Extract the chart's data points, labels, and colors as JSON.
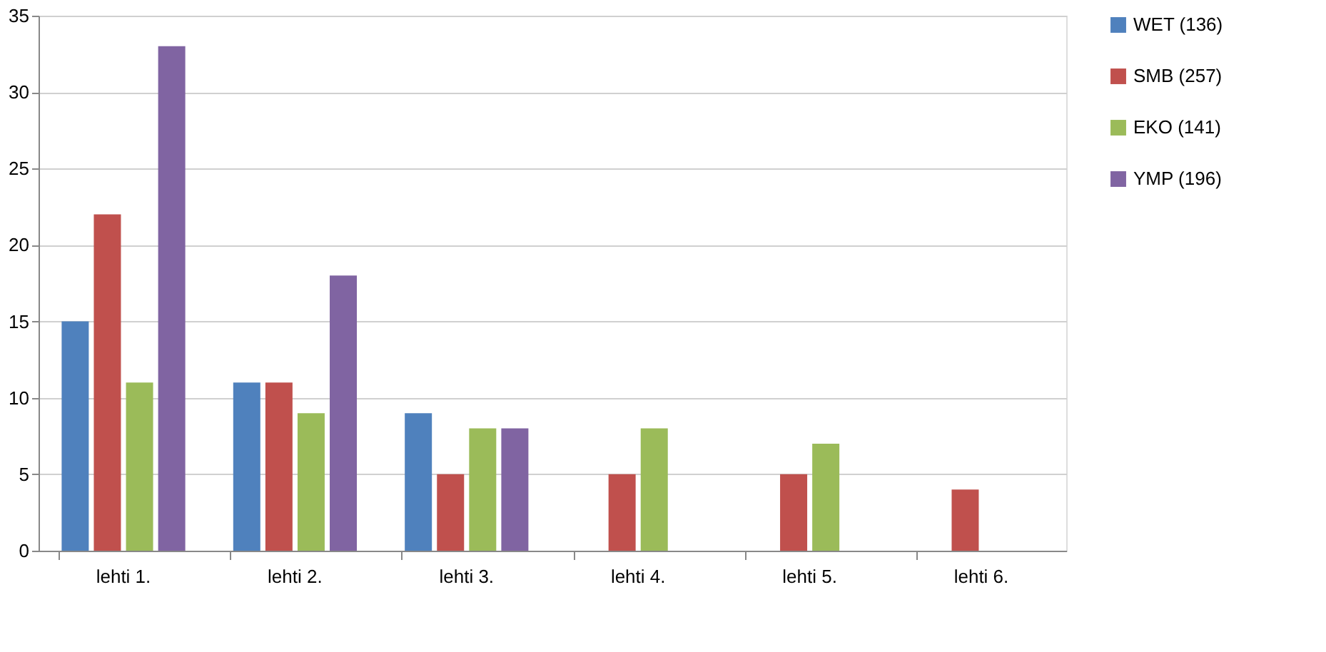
{
  "chart_data": {
    "type": "bar",
    "categories": [
      "lehti 1.",
      "lehti 2.",
      "lehti 3.",
      "lehti 4.",
      "lehti 5.",
      "lehti 6."
    ],
    "series": [
      {
        "name": "WET (136)",
        "color": "#4f81bd",
        "values": [
          15,
          11,
          9,
          null,
          null,
          null
        ]
      },
      {
        "name": "SMB (257)",
        "color": "#c0504d",
        "values": [
          22,
          11,
          5,
          5,
          5,
          4
        ]
      },
      {
        "name": "EKO (141)",
        "color": "#9bbb59",
        "values": [
          11,
          9,
          8,
          8,
          7,
          null
        ]
      },
      {
        "name": "YMP (196)",
        "color": "#8064a2",
        "values": [
          33,
          18,
          8,
          null,
          null,
          null
        ]
      }
    ],
    "ylim": [
      0,
      35
    ],
    "yticks": [
      0,
      5,
      10,
      15,
      20,
      25,
      30,
      35
    ],
    "grid": "y",
    "legend": "right"
  }
}
